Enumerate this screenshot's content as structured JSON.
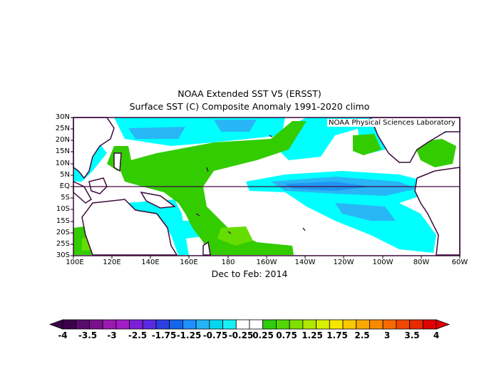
{
  "title": "NOAA Extended SST V5 (ERSST)",
  "subtitle": "Surface SST (C) Composite Anomaly 1991-2020 climo",
  "period": "Dec to Feb: 2014",
  "credit": "NOAA Physical Sciences Laboratory",
  "lat_labels": [
    "30N",
    "25N",
    "20N",
    "15N",
    "10N",
    "5N",
    "EQ",
    "5S",
    "10S",
    "15S",
    "20S",
    "25S",
    "30S"
  ],
  "lon_labels": [
    "100E",
    "120E",
    "140E",
    "160E",
    "180",
    "160W",
    "140W",
    "120W",
    "100W",
    "80W",
    "60W"
  ],
  "colorbar": {
    "labels": [
      "-4",
      "-3.5",
      "-3",
      "-2.5",
      "-1.75",
      "-1.25",
      "-0.75",
      "-0.25",
      "0.25",
      "0.75",
      "1.25",
      "1.75",
      "2.5",
      "3",
      "3.5",
      "4"
    ],
    "colors": [
      "#3d0049",
      "#5a0a6e",
      "#7a108e",
      "#9a1ab0",
      "#a21cc7",
      "#7c1fd6",
      "#5a2ae0",
      "#2d3fe3",
      "#1466eb",
      "#1e90ff",
      "#25b3f5",
      "#00d8f0",
      "#18f0f5",
      "#ffffff",
      "#ffffff",
      "#2ecc0b",
      "#52d606",
      "#80e000",
      "#b0e800",
      "#d8ef00",
      "#f7e600",
      "#f8c800",
      "#f8a800",
      "#f88a00",
      "#f86a00",
      "#f04800",
      "#e82a00",
      "#e00000"
    ],
    "units": "C"
  },
  "colors": {
    "frame": "#3c0a3c",
    "coast": "#3c0a3c",
    "cyan": "#00ffff",
    "lightblue": "#29b6f6",
    "blue": "#2196f3",
    "green": "#33cc00",
    "lightgreen": "#66dd00",
    "olive": "#99e600"
  }
}
